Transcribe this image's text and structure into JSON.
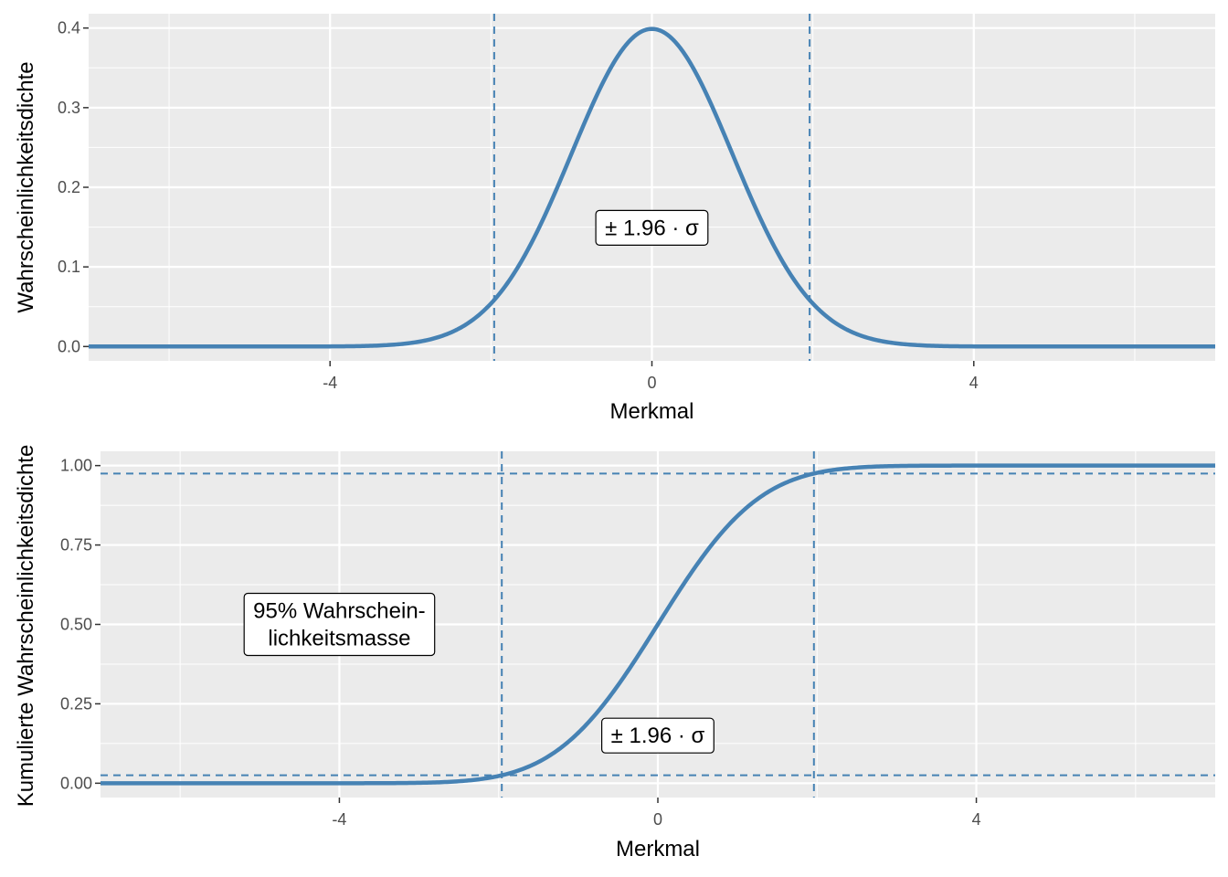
{
  "colors": {
    "panel_background": "#EBEBEB",
    "grid_major": "#FFFFFF",
    "curve": "#4682B4",
    "tick_text": "#4D4D4D",
    "tick_mark": "#333333"
  },
  "chart_data": [
    {
      "type": "line",
      "title": "",
      "xlabel": "Merkmal",
      "ylabel": "Wahrscheinlichkeitsdichte",
      "xlim": [
        -7,
        7
      ],
      "ylim": [
        0,
        0.4
      ],
      "x_ticks": [
        -4,
        0,
        4
      ],
      "x_tick_labels": [
        "-4",
        "0",
        "4"
      ],
      "y_ticks": [
        0,
        0.1,
        0.2,
        0.3,
        0.4
      ],
      "y_tick_labels": [
        "0.0",
        "0.1",
        "0.2",
        "0.3",
        "0.4"
      ],
      "grid": true,
      "series": [
        {
          "x": [
            -7,
            -6,
            -5,
            -4,
            -3.5,
            -3,
            -2.5,
            -2,
            -1.96,
            -1.5,
            -1,
            -0.5,
            0,
            0.5,
            1,
            1.5,
            1.96,
            2,
            2.5,
            3,
            3.5,
            4,
            5,
            6,
            7
          ],
          "y": [
            0,
            0,
            0,
            0.0001,
            0.0009,
            0.0044,
            0.0175,
            0.054,
            0.0584,
            0.1295,
            0.242,
            0.3521,
            0.3989,
            0.3521,
            0.242,
            0.1295,
            0.0584,
            0.054,
            0.0175,
            0.0044,
            0.0009,
            0.0001,
            0,
            0,
            0
          ]
        }
      ],
      "vertical_lines": [
        -1.96,
        1.96
      ],
      "horizontal_lines": [],
      "annotations": [
        {
          "text": "± 1.96 · σ",
          "x": 0,
          "y": 0.149
        }
      ]
    },
    {
      "type": "line",
      "title": "",
      "xlabel": "Merkmal",
      "ylabel": "Kumulierte Wahrscheinlichkeitsdichte",
      "xlim": [
        -7,
        7
      ],
      "ylim": [
        0,
        1
      ],
      "x_ticks": [
        -4,
        0,
        4
      ],
      "x_tick_labels": [
        "-4",
        "0",
        "4"
      ],
      "y_ticks": [
        0,
        0.25,
        0.5,
        0.75,
        1
      ],
      "y_tick_labels": [
        "0.00",
        "0.25",
        "0.50",
        "0.75",
        "1.00"
      ],
      "grid": true,
      "series": [
        {
          "x": [
            -7,
            -6,
            -5,
            -4,
            -3.5,
            -3,
            -2.5,
            -2,
            -1.96,
            -1.5,
            -1,
            -0.5,
            0,
            0.5,
            1,
            1.5,
            1.96,
            2,
            2.5,
            3,
            3.5,
            4,
            5,
            6,
            7
          ],
          "y": [
            0,
            0,
            0,
            0,
            0.0002,
            0.0013,
            0.0062,
            0.0228,
            0.025,
            0.0668,
            0.1587,
            0.3085,
            0.5,
            0.6915,
            0.8413,
            0.9332,
            0.975,
            0.9772,
            0.9938,
            0.9987,
            0.9998,
            1,
            1,
            1,
            1
          ]
        }
      ],
      "vertical_lines": [
        -1.96,
        1.96
      ],
      "horizontal_lines": [
        0.025,
        0.975
      ],
      "annotations": [
        {
          "text": "95% Wahrschein-\nlichkeitsmasse",
          "x": -4,
          "y": 0.5
        },
        {
          "text": "± 1.96 · σ",
          "x": 0,
          "y": 0.15
        }
      ]
    }
  ]
}
